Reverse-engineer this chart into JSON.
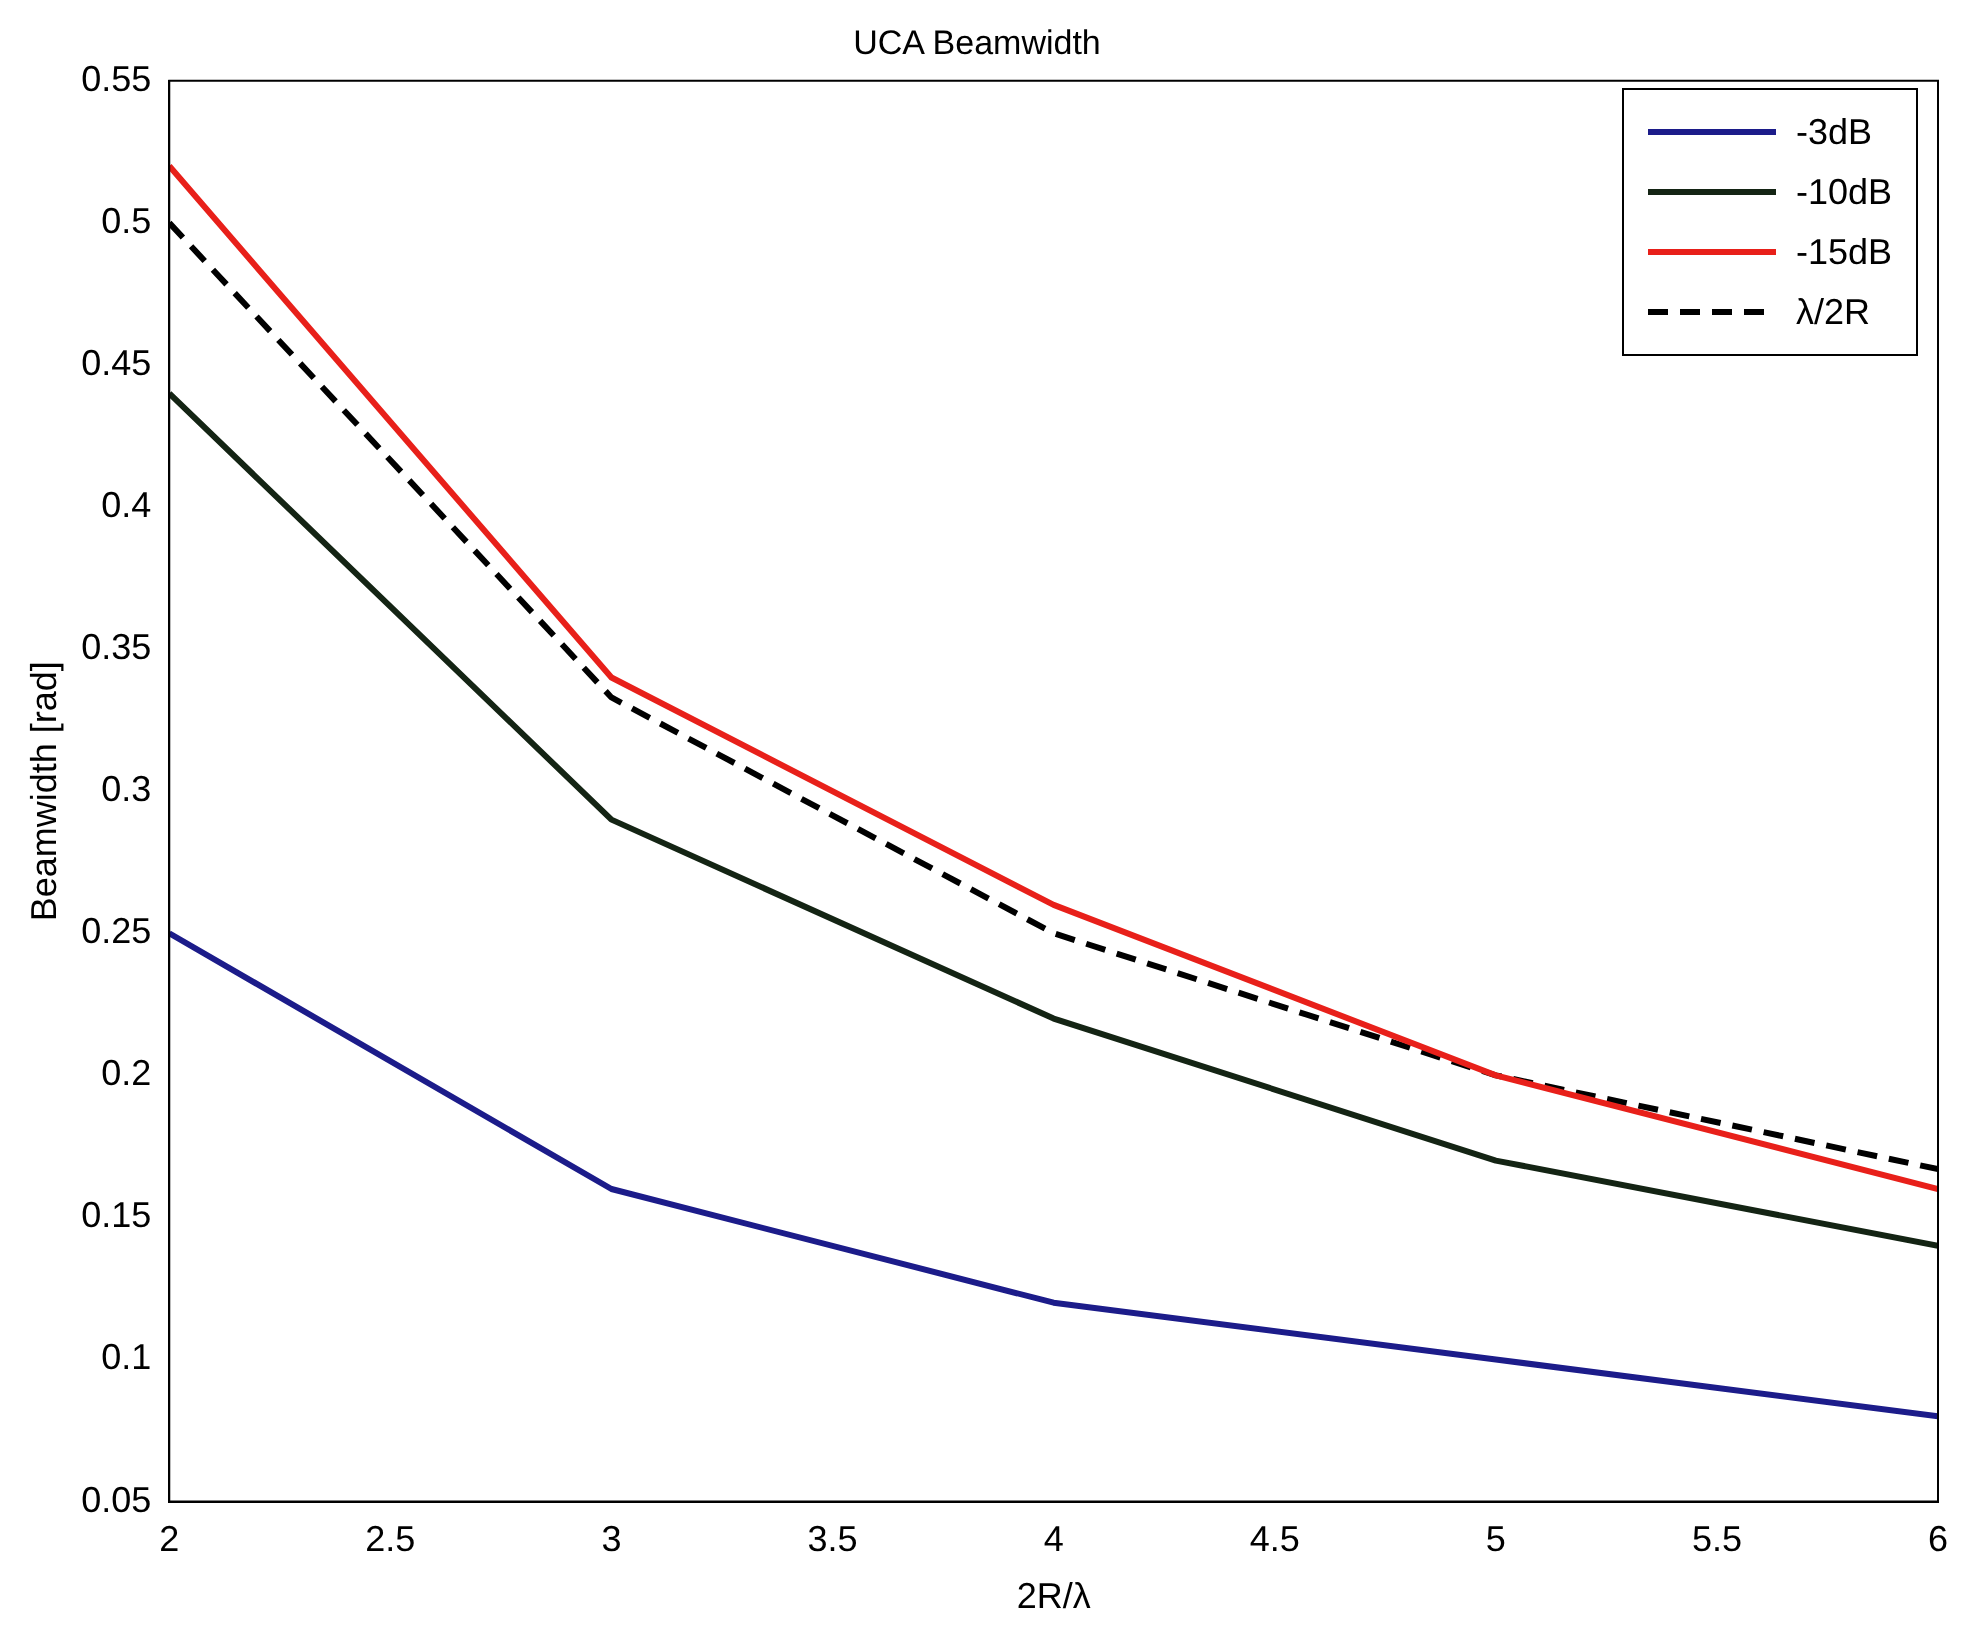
{
  "chart_data": {
    "type": "line",
    "title": "UCA Beamwidth",
    "xlabel": "2R/λ",
    "ylabel": "Beamwidth [rad]",
    "x": [
      2,
      3,
      4,
      5,
      6
    ],
    "series": [
      {
        "name": "-3dB",
        "color": "#1c1c8a",
        "values": [
          0.25,
          0.16,
          0.12,
          0.1,
          0.08
        ]
      },
      {
        "name": "-10dB",
        "color": "#142414",
        "values": [
          0.44,
          0.29,
          0.22,
          0.17,
          0.14
        ]
      },
      {
        "name": "-15dB",
        "color": "#e8201a",
        "values": [
          0.52,
          0.34,
          0.26,
          0.2,
          0.16
        ]
      },
      {
        "name": "λ/2R",
        "color": "#000000",
        "line_style": "dashed",
        "values": [
          0.5,
          0.333,
          0.25,
          0.2,
          0.167
        ]
      }
    ],
    "xlim": [
      2,
      6
    ],
    "xticks": [
      2,
      2.5,
      3,
      3.5,
      4,
      4.5,
      5,
      5.5,
      6
    ],
    "ylim": [
      0.05,
      0.55
    ],
    "yticks": [
      0.05,
      0.1,
      0.15,
      0.2,
      0.25,
      0.3,
      0.35,
      0.4,
      0.45,
      0.5,
      0.55
    ],
    "grid": false,
    "legend": "top right",
    "marker": "none"
  }
}
